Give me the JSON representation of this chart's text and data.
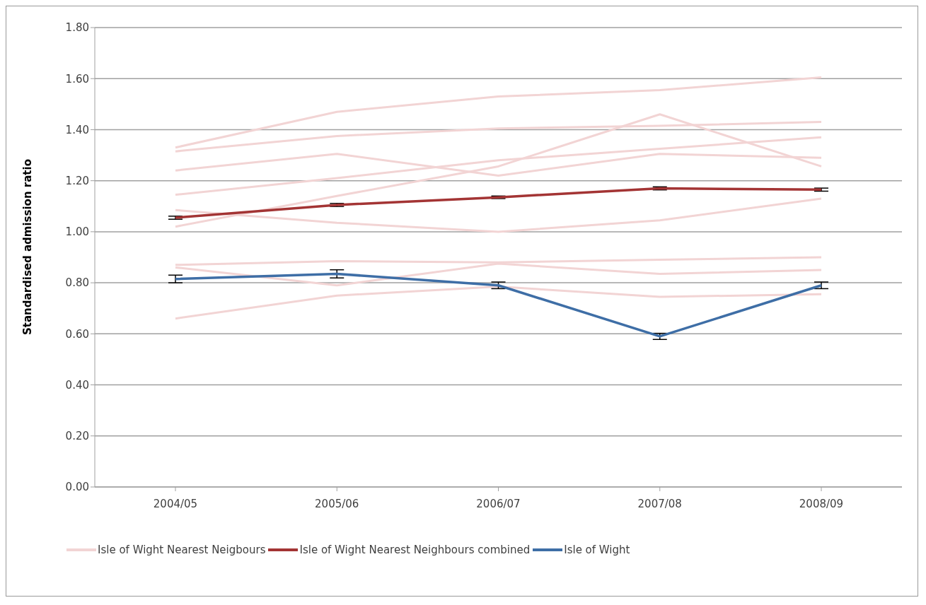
{
  "chart_data": {
    "type": "line",
    "ylabel": "Standardised admission ratio",
    "categories": [
      "2004/05",
      "2005/06",
      "2006/07",
      "2007/08",
      "2008/09"
    ],
    "series": [
      {
        "name": "Isle of Wight Nearest Neigbours",
        "color": "#f2d4d4",
        "values": [
          1.33,
          1.47,
          1.53,
          1.555,
          1.605
        ]
      },
      {
        "color": "#f2d4d4",
        "values": [
          1.315,
          1.375,
          1.405,
          1.415,
          1.43
        ]
      },
      {
        "color": "#f2d4d4",
        "values": [
          1.24,
          1.305,
          1.22,
          1.305,
          1.29
        ]
      },
      {
        "color": "#f2d4d4",
        "values": [
          1.145,
          1.21,
          1.28,
          1.325,
          1.37
        ]
      },
      {
        "color": "#f2d4d4",
        "values": [
          1.02,
          1.14,
          1.256,
          1.46,
          1.256
        ]
      },
      {
        "color": "#f2d4d4",
        "values": [
          1.085,
          1.035,
          1.0,
          1.045,
          1.13
        ]
      },
      {
        "color": "#f2d4d4",
        "values": [
          0.87,
          0.885,
          0.88,
          0.89,
          0.9
        ]
      },
      {
        "color": "#f2d4d4",
        "values": [
          0.86,
          0.79,
          0.875,
          0.835,
          0.85
        ]
      },
      {
        "color": "#f2d4d4",
        "values": [
          0.66,
          0.75,
          0.785,
          0.745,
          0.755
        ]
      },
      {
        "name": "Isle of Wight Nearest Neighbours combined",
        "color": "#a33434",
        "values": [
          1.055,
          1.105,
          1.135,
          1.17,
          1.165
        ],
        "errors": [
          0.006,
          0.006,
          0.005,
          0.006,
          0.006
        ]
      },
      {
        "name": "Isle of Wight",
        "color": "#3e6ea6",
        "values": [
          0.815,
          0.835,
          0.79,
          0.59,
          0.79
        ],
        "errors": [
          0.015,
          0.016,
          0.013,
          0.012,
          0.013
        ]
      }
    ],
    "ylim": [
      0,
      1.8
    ],
    "yticks": [
      {
        "value": 0,
        "label": "0.00"
      },
      {
        "value": 0.2,
        "label": "0.20"
      },
      {
        "value": 0.4,
        "label": "0.40"
      },
      {
        "value": 0.6,
        "label": "0.60"
      },
      {
        "value": 0.8,
        "label": "0.80"
      },
      {
        "value": 1,
        "label": "1.00"
      },
      {
        "value": 1.2,
        "label": "1.20"
      },
      {
        "value": 1.4,
        "label": "1.40"
      },
      {
        "value": 1.6,
        "label": "1.60"
      },
      {
        "value": 1.8,
        "label": "1.80"
      }
    ],
    "grid": "y",
    "legend": "bottom",
    "marker": "none",
    "line_style": "solid"
  }
}
